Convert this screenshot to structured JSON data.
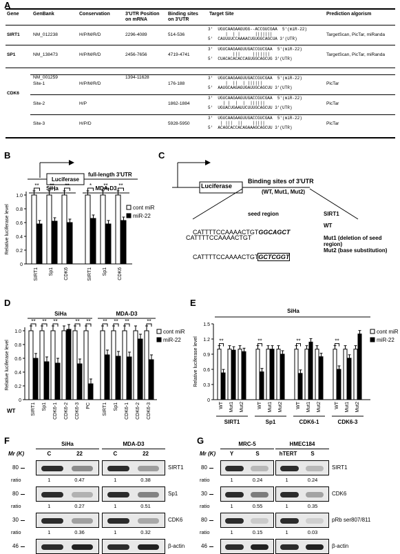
{
  "panels": {
    "A": "A",
    "B": "B",
    "C": "C",
    "D": "D",
    "E": "E",
    "F": "F",
    "G": "G"
  },
  "table": {
    "headers": {
      "gene": "Gene",
      "genbank": "GenBank",
      "conservation": "Conservation",
      "pos1": "3'UTR Position",
      "pos2": "on mRNA",
      "bind1": "Binding sites",
      "bind2": "on 3'UTR",
      "target": "Target Site",
      "pred": "Prediction algorism"
    },
    "rows": [
      {
        "gene": "SIRT1",
        "genbank": "NM_012238",
        "cons": "H/P/M/R/D",
        "pos": "2296-4089",
        "bind": "514-536",
        "l1": "3'  UGUCAAGAAGUGG--ACCGUCGAA  5'(miR-22)",
        "l2": "       |  | |      |||||||",
        "l3": "5'  CAUUUUCCAAAACUGUGGCAGCUA 3'(UTR)",
        "pred": "TargetScan, PicTar, miRanda"
      },
      {
        "gene": "SP1",
        "genbank": "NM_138473",
        "cons": "H/P/M/R/D",
        "pos": "2456-7656",
        "bind": "4719-4741",
        "l1": "3'  UGUCAAGAAGUUGACCGUCGAA  5'(miR-22)",
        "l2": "          |||     |||||||",
        "l3": "5'  CUACACACACCAGUGGCAGCUG 3'(UTR)",
        "pred": "TargetScan, PicTar, miRanda"
      },
      {
        "gene": "CDK6",
        "genbank": "NM_001259",
        "cons": "",
        "pos": "1394-11628",
        "bind": "",
        "l1": "",
        "l2": "",
        "l3": "",
        "pred": ""
      },
      {
        "gene": "",
        "genbank": "Site-1",
        "cons": "H/P/M/R/D",
        "pos": "",
        "bind": "176-188",
        "l1": "3'  UGUCAAGAAGUUGACCGUCGAA  5'(miR-22)",
        "l2": "       |  ||  | ||||||",
        "l3": "5'  AAUGCAAGAGUGAUUGCAGCUU 3'(UTR)",
        "pred": "PicTar"
      },
      {
        "gene": "",
        "genbank": "Site-2",
        "cons": "H/P",
        "pos": "",
        "bind": "1862-1884",
        "l1": "3'  UGUCAAGAAGUUGACCGUCGAA  5'(miR-22)",
        "l2": "      | |  |  |  ||||||",
        "l3": "5'  UGUACUGAAUUCUUUGCAGCUU 3'(UTR)",
        "pred": "PicTar"
      },
      {
        "gene": "",
        "genbank": "Site-3",
        "cons": "H/P/D",
        "pos": "",
        "bind": "5928-5950",
        "l1": "3'  UGUCAAGAAGUUGACCGUCGAA  5'(miR-22)",
        "l2": "     | |||  ||    |||||",
        "l3": "5'  ACAGCACCACAGAAAGCAGCUU 3'(UTR)",
        "pred": "PicTar"
      }
    ]
  },
  "panelB": {
    "construct_label": "Luciferase",
    "utr_label": "full-length 3'UTR",
    "ylabel": "Relative luciferase level",
    "yticks": [
      "0",
      "0.2",
      "0.4",
      "0.6",
      "0.8",
      "1.0"
    ],
    "groups": [
      {
        "name": "SiHa",
        "categories": [
          "SIRT1",
          "Sp1",
          "CDK6"
        ],
        "cont": [
          1.0,
          1.0,
          1.0
        ],
        "mir": [
          0.58,
          0.62,
          0.6
        ],
        "sig": [
          "**",
          "**",
          "**"
        ]
      },
      {
        "name": "MDA-D3",
        "categories": [
          "SIRT1",
          "Sp1",
          "CDK6"
        ],
        "cont": [
          1.0,
          1.0,
          1.0
        ],
        "mir": [
          0.66,
          0.58,
          0.63
        ],
        "sig": [
          "*",
          "**",
          "**"
        ]
      }
    ],
    "legend": [
      "cont miR",
      "miR-22"
    ]
  },
  "panelC": {
    "construct_label": "Luciferase",
    "utr_label": "Binding sites of 3'UTR",
    "variants": "(WT, Mut1, Mut2)",
    "seed_label": "seed region",
    "gene": "SIRT1",
    "seq_prefix": "CATTTTCCAAAACTGT",
    "wt_seed": "GGCAGCT",
    "mut2_seed": "GCTCGGT",
    "rows": [
      {
        "name": "WT"
      },
      {
        "name": "Mut1 (deletion of seed region)"
      },
      {
        "name": "Mut2 (base substitution)"
      }
    ]
  },
  "chart_data": [
    {
      "type": "bar",
      "title": "",
      "xlabel": "",
      "ylabel": "Relative luciferase level",
      "ylim": [
        0,
        1.2
      ],
      "groups": [
        "SiHa",
        "MDA-D3"
      ],
      "categories": [
        "SIRT1",
        "Sp1",
        "CDK6-1",
        "CDK6-2",
        "CDK6-3",
        "PC",
        "SIRT1",
        "Sp1",
        "CDK6-1",
        "CDK6-2",
        "CDK6-3"
      ],
      "series": [
        {
          "name": "cont miR",
          "values": [
            1.0,
            1.0,
            1.0,
            1.0,
            1.0,
            1.0,
            1.0,
            1.0,
            1.0,
            1.0,
            1.0
          ]
        },
        {
          "name": "miR-22",
          "values": [
            0.6,
            0.55,
            0.53,
            1.02,
            0.52,
            0.23,
            0.65,
            0.63,
            0.62,
            0.88,
            0.58
          ]
        }
      ],
      "sig": [
        "**",
        "**",
        "**",
        "",
        "**",
        "**",
        "**",
        "**",
        "**",
        "",
        "**"
      ],
      "xprefix": "WT"
    },
    {
      "type": "bar",
      "title": "SiHa",
      "xlabel": "",
      "ylabel": "Relative luciferase level",
      "ylim": [
        0,
        1.5
      ],
      "yticks": [
        "0",
        "0.3",
        "0.6",
        "0.9",
        "1.2",
        "1.5"
      ],
      "groups": [
        "SIRT1",
        "Sp1",
        "CDK6-1",
        "CDK6-3"
      ],
      "categories": [
        "WT",
        "Mut1",
        "Mut2",
        "WT",
        "Mut1",
        "Mut2",
        "WT",
        "Mut1",
        "Mut2",
        "WT",
        "Mut1",
        "Mut2"
      ],
      "series": [
        {
          "name": "cont miR",
          "values": [
            1.0,
            1.0,
            1.0,
            1.0,
            1.0,
            1.0,
            1.0,
            1.0,
            1.0,
            1.0,
            1.0,
            1.0
          ]
        },
        {
          "name": "miR-22",
          "values": [
            0.53,
            0.98,
            0.95,
            0.55,
            1.0,
            0.9,
            0.52,
            1.14,
            0.85,
            0.6,
            0.82,
            1.3
          ]
        }
      ],
      "sig": [
        "**",
        "",
        "",
        "**",
        "",
        "",
        "**",
        "",
        "",
        "**",
        "",
        ""
      ]
    }
  ],
  "panelD": {
    "ylabel": "Relative luciferase level",
    "yticks": [
      "0",
      "0.2",
      "0.4",
      "0.6",
      "0.8",
      "1.0"
    ],
    "groups": [
      "SiHa",
      "MDA-D3"
    ],
    "wt": "WT",
    "legend": [
      "cont miR",
      "miR-22"
    ]
  },
  "panelE": {
    "cell": "SiHa",
    "legend": [
      "cont miR",
      "miR-22"
    ]
  },
  "panelF": {
    "mr": "Mr (K)",
    "cells": [
      "SiHa",
      "MDA-D3"
    ],
    "lanes": [
      "C",
      "22",
      "C",
      "22"
    ],
    "blots": [
      {
        "name": "SIRT1",
        "mw": "80",
        "ratios": [
          "1",
          "0.47",
          "1",
          "0.38"
        ]
      },
      {
        "name": "Sp1",
        "mw": "80",
        "ratios": [
          "1",
          "0.27",
          "1",
          "0.51"
        ]
      },
      {
        "name": "CDK6",
        "mw": "30",
        "ratios": [
          "1",
          "0.36",
          "1",
          "0.32"
        ]
      },
      {
        "name": "β-actin",
        "mw": "46",
        "ratios": []
      }
    ],
    "ratio_label": "ratio"
  },
  "panelG": {
    "mr": "Mr (K)",
    "cells": [
      "MRC-5",
      "HMEC184"
    ],
    "lanes": [
      "Y",
      "S",
      "hTERT",
      "S"
    ],
    "blots": [
      {
        "name": "SIRT1",
        "mw": "80",
        "ratios": [
          "1",
          "0.24",
          "1",
          "0.24"
        ]
      },
      {
        "name": "CDK6",
        "mw": "30",
        "ratios": [
          "1",
          "0.55",
          "1",
          "0.35"
        ]
      },
      {
        "name": "pRb ser807/811",
        "mw": "80",
        "ratios": [
          "1",
          "0.15",
          "1",
          "0.03"
        ]
      },
      {
        "name": "β-actin",
        "mw": "46",
        "ratios": []
      }
    ],
    "ratio_label": "ratio"
  }
}
